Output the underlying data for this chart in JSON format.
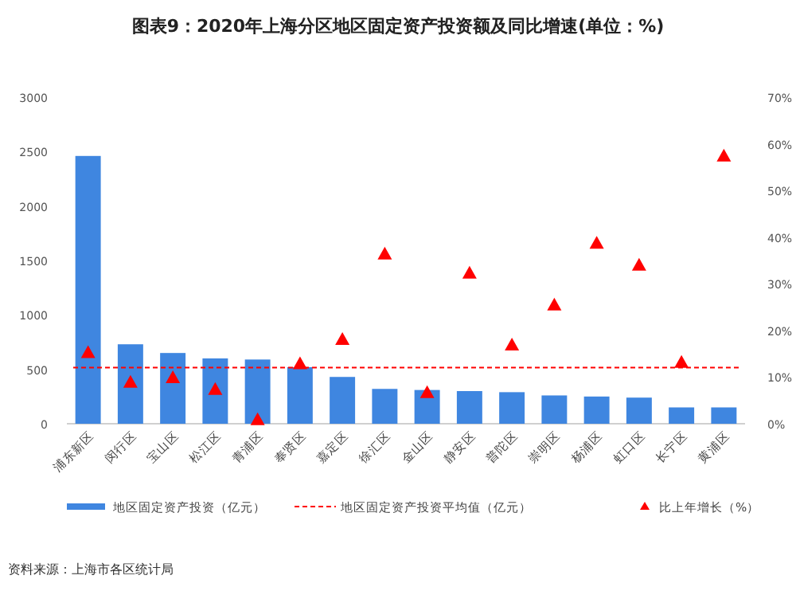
{
  "chart_data": {
    "type": "bar",
    "title": "图表9：2020年上海分区地区固定资产投资额及同比增速(单位：%)",
    "categories": [
      "浦东新区",
      "闵行区",
      "宝山区",
      "松江区",
      "青浦区",
      "奉贤区",
      "嘉定区",
      "徐汇区",
      "金山区",
      "静安区",
      "普陀区",
      "崇明区",
      "杨浦区",
      "虹口区",
      "长宁区",
      "黄浦区"
    ],
    "series": [
      {
        "name": "地区固定资产投资（亿元）",
        "color": "#3f86e0",
        "values": [
          2460,
          730,
          650,
          600,
          590,
          520,
          430,
          320,
          310,
          300,
          290,
          260,
          250,
          240,
          150,
          150
        ]
      },
      {
        "name": "比上年增长（%）",
        "type": "scatter",
        "axis": "y2",
        "color": "#ff0000",
        "marker": "triangle",
        "values": [
          15.3,
          8.9,
          9.9,
          7.4,
          0.9,
          12.9,
          18.1,
          36.4,
          6.7,
          32.3,
          16.9,
          25.5,
          38.7,
          34.0,
          13.2,
          57.4
        ]
      }
    ],
    "ref_lines": [
      {
        "axis": "y",
        "value": 515,
        "label": "地区固定资产投资平均值（亿元）",
        "color": "#ff0000",
        "line_style": "dashed"
      }
    ],
    "ylim": [
      0,
      3000
    ],
    "yticks": [
      0,
      500,
      1000,
      1500,
      2000,
      2500,
      3000
    ],
    "y2lim": [
      0,
      70
    ],
    "y2ticks": [
      {
        "value": 0,
        "label": "0%"
      },
      {
        "value": 10,
        "label": "10%"
      },
      {
        "value": 20,
        "label": "20%"
      },
      {
        "value": 30,
        "label": "30%"
      },
      {
        "value": 40,
        "label": "40%"
      },
      {
        "value": 50,
        "label": "50%"
      },
      {
        "value": 60,
        "label": "60%"
      },
      {
        "value": 70,
        "label": "70%"
      }
    ],
    "grid": false,
    "legend": "bottom",
    "annotations": [
      "资料来源：上海市各区统计局"
    ]
  }
}
